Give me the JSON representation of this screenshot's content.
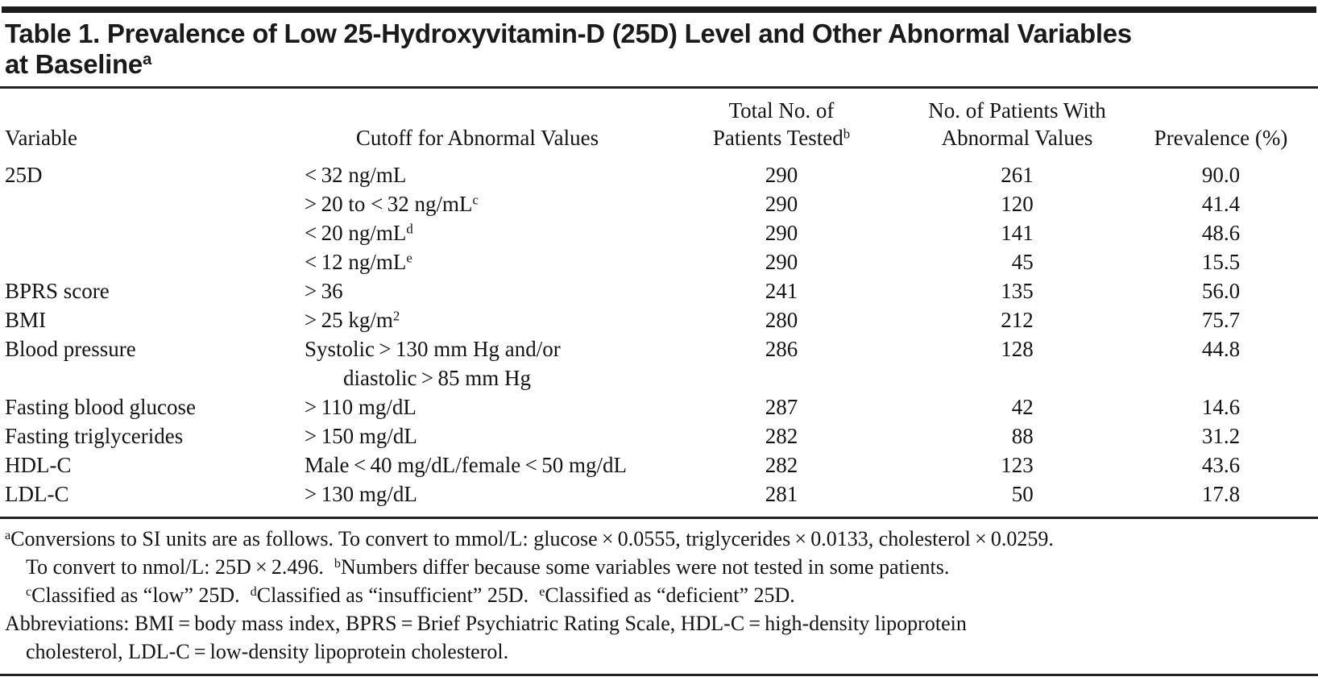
{
  "title": {
    "line1": "Table 1. Prevalence of Low 25-Hydroxyvitamin-D (25D) Level and Other Abnormal Variables",
    "line2": "at Baseline",
    "footnote_marker": "a"
  },
  "table": {
    "headers": {
      "variable": "Variable",
      "cutoff": "Cutoff for Abnormal Values",
      "total_line1": "Total No. of",
      "total_line2": "Patients Tested",
      "total_sup": "b",
      "abnormal_line1": "No. of Patients With",
      "abnormal_line2": "Abnormal Values",
      "prevalence": "Prevalence (%)"
    },
    "rows": [
      {
        "variable": "25D",
        "cutoff": "< 32 ng/mL",
        "sup": "",
        "cutoff2": "",
        "total": "290",
        "abnormal": "261",
        "prevalence": "90.0"
      },
      {
        "variable": "",
        "cutoff": "> 20 to < 32 ng/mL",
        "sup": "c",
        "cutoff2": "",
        "total": "290",
        "abnormal": "120",
        "prevalence": "41.4"
      },
      {
        "variable": "",
        "cutoff": "< 20 ng/mL",
        "sup": "d",
        "cutoff2": "",
        "total": "290",
        "abnormal": "141",
        "prevalence": "48.6"
      },
      {
        "variable": "",
        "cutoff": "< 12 ng/mL",
        "sup": "e",
        "cutoff2": "",
        "total": "290",
        "abnormal": "45",
        "prevalence": "15.5"
      },
      {
        "variable": "BPRS score",
        "cutoff": "> 36",
        "sup": "",
        "cutoff2": "",
        "total": "241",
        "abnormal": "135",
        "prevalence": "56.0"
      },
      {
        "variable": "BMI",
        "cutoff": "> 25 kg/m",
        "sup": "2",
        "cutoff2": "",
        "total": "280",
        "abnormal": "212",
        "prevalence": "75.7"
      },
      {
        "variable": "Blood pressure",
        "cutoff": "Systolic > 130 mm Hg and/or",
        "sup": "",
        "cutoff2": "diastolic > 85 mm Hg",
        "total": "286",
        "abnormal": "128",
        "prevalence": "44.8"
      },
      {
        "variable": "Fasting blood glucose",
        "cutoff": "> 110 mg/dL",
        "sup": "",
        "cutoff2": "",
        "total": "287",
        "abnormal": "42",
        "prevalence": "14.6"
      },
      {
        "variable": "Fasting triglycerides",
        "cutoff": "> 150 mg/dL",
        "sup": "",
        "cutoff2": "",
        "total": "282",
        "abnormal": "88",
        "prevalence": "31.2"
      },
      {
        "variable": "HDL-C",
        "cutoff": "Male < 40 mg/dL/female < 50 mg/dL",
        "sup": "",
        "cutoff2": "",
        "total": "282",
        "abnormal": "123",
        "prevalence": "43.6"
      },
      {
        "variable": "LDL-C",
        "cutoff": "> 130 mg/dL",
        "sup": "",
        "cutoff2": "",
        "total": "281",
        "abnormal": "50",
        "prevalence": "17.8"
      }
    ]
  },
  "footnotes": {
    "lines": [
      {
        "indent": false,
        "segments": [
          {
            "sup": "a"
          },
          {
            "text": "Conversions to SI units are as follows. To convert to mmol/L: glucose × 0.0555, triglycerides × 0.0133, cholesterol × 0.0259."
          }
        ]
      },
      {
        "indent": true,
        "segments": [
          {
            "text": "To convert to nmol/L: 25D × 2.496. "
          },
          {
            "sup": "b"
          },
          {
            "text": "Numbers differ because some variables were not tested in some patients."
          }
        ]
      },
      {
        "indent": true,
        "segments": [
          {
            "sup": "c"
          },
          {
            "text": "Classified as “low” 25D. "
          },
          {
            "sup": "d"
          },
          {
            "text": "Classified as “insufficient” 25D. "
          },
          {
            "sup": "e"
          },
          {
            "text": "Classified as “deficient” 25D."
          }
        ]
      },
      {
        "indent": false,
        "segments": [
          {
            "text": "Abbreviations: BMI = body mass index, BPRS = Brief Psychiatric Rating Scale, HDL-C = high-density lipoprotein"
          }
        ]
      },
      {
        "indent": true,
        "segments": [
          {
            "text": "cholesterol, LDL-C = low-density lipoprotein cholesterol."
          }
        ]
      }
    ]
  }
}
